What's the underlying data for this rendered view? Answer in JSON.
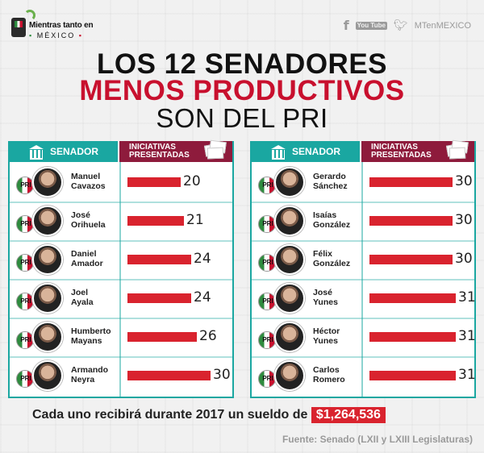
{
  "header": {
    "logo_line1": "Mientras tanto en",
    "logo_line2": "MÉXICO",
    "social_handle": "MTenMEXICO",
    "social_icons": [
      "facebook-icon",
      "youtube-icon",
      "twitter-icon"
    ],
    "youtube_text": "You Tube"
  },
  "title": {
    "line1": "LOS 12 SENADORES",
    "line2": "MENOS PRODUCTIVOS",
    "line3": "SON DEL PRI"
  },
  "columns": {
    "senador": "SENADOR",
    "iniciativas_1": "INICIATIVAS",
    "iniciativas_2": "PRESENTADAS"
  },
  "party_label": "PRI",
  "colors": {
    "teal": "#1aa7a1",
    "maroon": "#8e1b3c",
    "bar_red": "#d9232e",
    "title_red": "#c8102e"
  },
  "chart_data": {
    "type": "bar",
    "title": "LOS 12 SENADORES MENOS PRODUCTIVOS SON DEL PRI",
    "xlabel": "INICIATIVAS PRESENTADAS",
    "ylabel": "SENADOR",
    "xlim": [
      0,
      30
    ],
    "left": [
      {
        "first": "Manuel",
        "last": "Cavazos",
        "value": 20
      },
      {
        "first": "José",
        "last": "Orihuela",
        "value": 21
      },
      {
        "first": "Daniel",
        "last": "Amador",
        "value": 24
      },
      {
        "first": "Joel",
        "last": "Ayala",
        "value": 24
      },
      {
        "first": "Humberto",
        "last": "Mayans",
        "value": 26
      },
      {
        "first": "Armando",
        "last": "Neyra",
        "value": 30
      }
    ],
    "right": [
      {
        "first": "Gerardo",
        "last": "Sánchez",
        "value": 30
      },
      {
        "first": "Isaías",
        "last": "González",
        "value": 30
      },
      {
        "first": "Félix",
        "last": "González",
        "value": 30
      },
      {
        "first": "José",
        "last": "Yunes",
        "value": 31
      },
      {
        "first": "Héctor",
        "last": "Yunes",
        "value": 31
      },
      {
        "first": "Carlos",
        "last": "Romero",
        "value": 31
      }
    ]
  },
  "footer": {
    "text": "Cada uno recibirá durante 2017 un sueldo de",
    "amount": "$1,264,536",
    "source": "Fuente: Senado (LXII y LXIII Legislaturas)"
  }
}
